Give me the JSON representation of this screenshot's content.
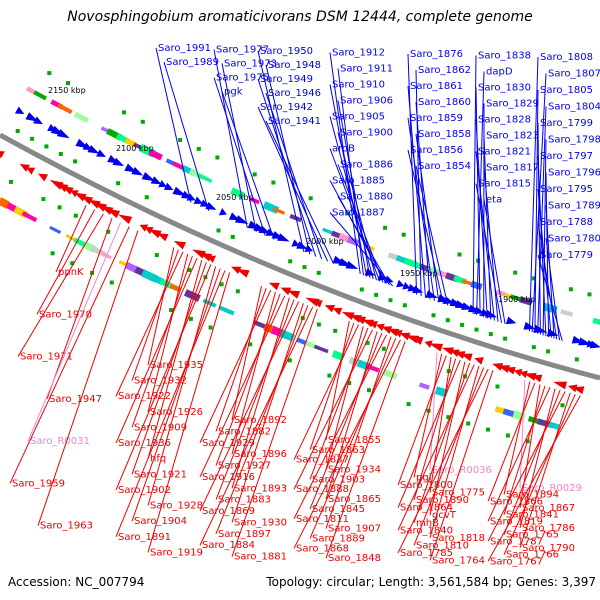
{
  "title": "Novosphingobium aromaticivorans DSM 12444, complete genome",
  "footer": {
    "accession": "Accession: NC_007794",
    "stats": "Topology: circular; Length: 3,561,584 bp; Genes: 3,397"
  },
  "colors": {
    "backbone": "#888888",
    "forward_gene": "#0000ee",
    "reverse_gene": "#ee0000",
    "rna_gene": "#ee88cc"
  },
  "position_labels": [
    "2150 kbp",
    "2100 kbp",
    "2050 kbp",
    "2000 kbp",
    "1950 kbp",
    "1900 kbp"
  ],
  "top_genes": [
    "Saro_1991",
    "Saro_1989",
    "Saro_1977",
    "Saro_1973",
    "Saro_1975",
    "pgk",
    "Saro_1950",
    "Saro_1948",
    "Saro_1949",
    "Saro_1946",
    "Saro_1942",
    "Saro_1941",
    "Saro_1912",
    "Saro_1911",
    "Saro_1910",
    "Saro_1906",
    "Saro_1905",
    "Saro_1900",
    "aroB",
    "Saro_1886",
    "Saro_1885",
    "Saro_1880",
    "Saro_1887",
    "Saro_1876",
    "Saro_1862",
    "Saro_1861",
    "Saro_1860",
    "Saro_1859",
    "Saro_1858",
    "Saro_1856",
    "Saro_1854",
    "Saro_1838",
    "dapD",
    "Saro_1830",
    "Saro_1829",
    "Saro_1828",
    "Saro_1823",
    "Saro_1821",
    "Saro_1817",
    "Saro_1815",
    "eta",
    "Saro_1808",
    "Saro_1807",
    "Saro_1805",
    "Saro_1804",
    "Saro_1799",
    "Saro_1798",
    "Saro_1797",
    "Saro_1796",
    "Saro_1795",
    "Saro_1789",
    "Saro_1788",
    "Saro_1780",
    "Saro_1779"
  ],
  "bottom_genes": [
    "ppnK",
    "Saro_1970",
    "Saro_1971",
    "Saro_1947",
    "Saro_R0031",
    "Saro_1959",
    "Saro_1963",
    "Saro_1935",
    "Saro_1932",
    "Saro_1922",
    "Saro_1926",
    "Saro_1909",
    "Saro_1936",
    "hfq",
    "Saro_1921",
    "Saro_1902",
    "Saro_1928",
    "Saro_1904",
    "Saro_1891",
    "Saro_1919",
    "Saro_1892",
    "Saro_1882",
    "Saro_1929",
    "Saro_1896",
    "Saro_1927",
    "Saro_1916",
    "Saro_1893",
    "Saro_1883",
    "Saro_1869",
    "Saro_1930",
    "Saro_1897",
    "Saro_1884",
    "Saro_1881",
    "Saro_1855",
    "Saro_1863",
    "Saro_1837",
    "Saro_1934",
    "Saro_1903",
    "Saro_1888",
    "Saro_1865",
    "Saro_1845",
    "Saro_1811",
    "Saro_1907",
    "Saro_1889",
    "Saro_1868",
    "Saro_1848",
    "Saro_R0036",
    "pgi",
    "Saro_1800",
    "Saro_1775",
    "Saro_1890",
    "Saro_1864",
    "gcvT",
    "mhB",
    "Saro_1840",
    "Saro_1818",
    "Saro_1810",
    "Saro_1785",
    "Saro_1764",
    "Saro_R0029",
    "Saro_1894",
    "Saro_1866",
    "Saro_1867",
    "Saro_1841",
    "Saro_1819",
    "Saro_1786",
    "Saro_1765",
    "Saro_1787",
    "Saro_1790",
    "Saro_1766",
    "Saro_1767"
  ]
}
